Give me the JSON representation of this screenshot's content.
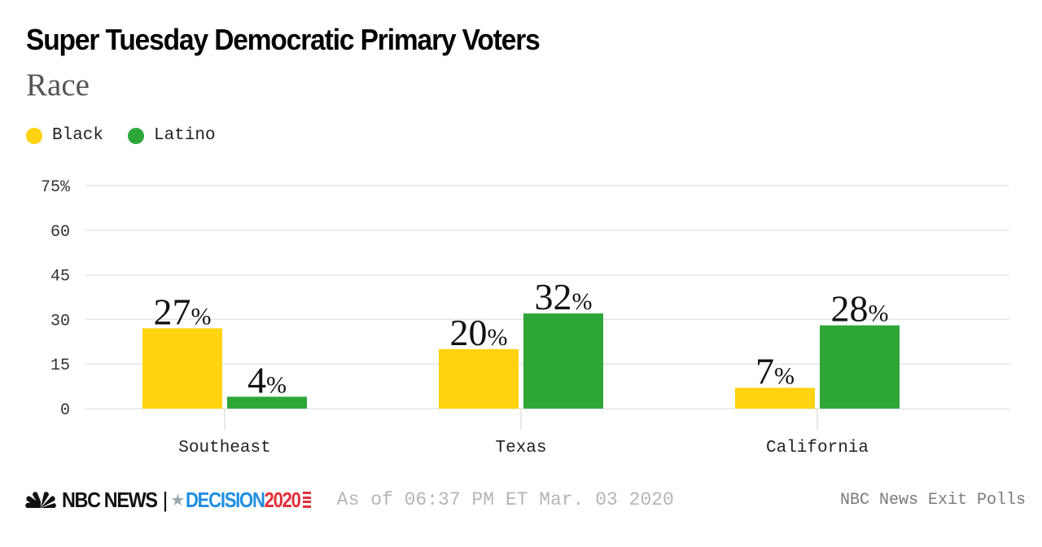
{
  "header": {
    "title": "Super Tuesday Democratic Primary Voters",
    "subtitle": "Race"
  },
  "legend": [
    {
      "label": "Black",
      "color": "#FFD30F"
    },
    {
      "label": "Latino",
      "color": "#2EA638"
    }
  ],
  "footer": {
    "brand": "NBC NEWS",
    "separator": "|",
    "decision_word": "DECISION",
    "decision_year": "2020",
    "as_of": "As of 06:37 PM ET Mar. 03 2020",
    "source": "NBC News Exit Polls"
  },
  "chart_data": {
    "type": "bar",
    "title": "Super Tuesday Democratic Primary Voters",
    "subtitle": "Race",
    "xlabel": "",
    "ylabel": "",
    "categories": [
      "Southeast",
      "Texas",
      "California"
    ],
    "series": [
      {
        "name": "Black",
        "color": "#FFD30F",
        "values": [
          27,
          20,
          7
        ]
      },
      {
        "name": "Latino",
        "color": "#2EA638",
        "values": [
          4,
          32,
          28
        ]
      }
    ],
    "ylim": [
      0,
      75
    ],
    "yticks": [
      0,
      15,
      30,
      45,
      60,
      75
    ],
    "ytick_labels": [
      "0",
      "15",
      "30",
      "45",
      "60",
      "75%"
    ],
    "value_suffix": "%",
    "grid": true,
    "legend_position": "top-left"
  }
}
